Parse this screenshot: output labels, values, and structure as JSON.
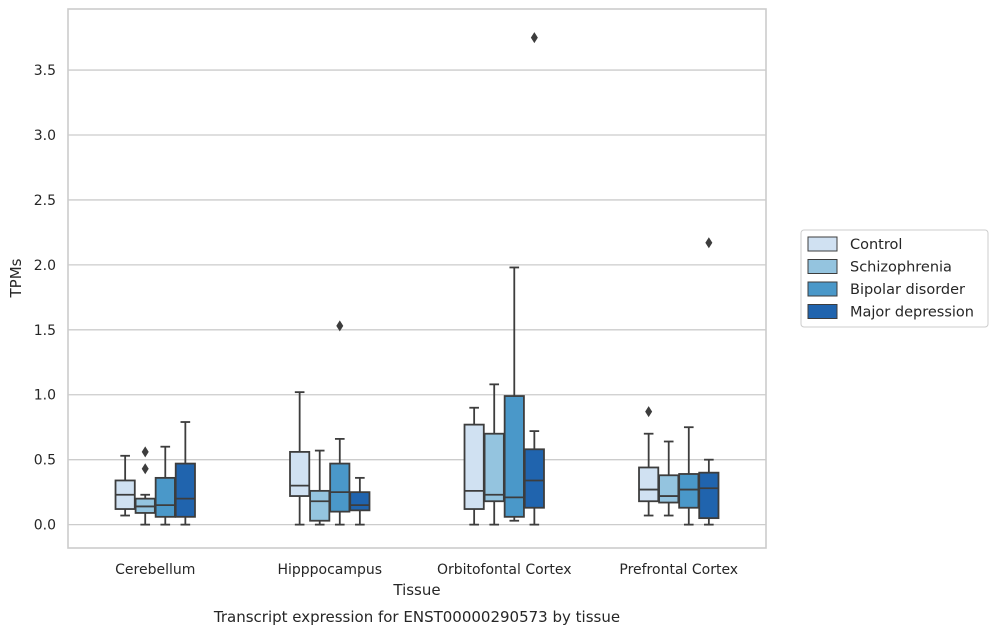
{
  "chart_data": {
    "type": "boxplot",
    "caption": "Transcript expression for ENST00000290573 by tissue",
    "xlabel": "Tissue",
    "ylabel": "TPMs",
    "ylim": [
      -0.18,
      3.97
    ],
    "yticks": [
      "0.0",
      "0.5",
      "1.0",
      "1.5",
      "2.0",
      "2.5",
      "3.0",
      "3.5"
    ],
    "grid": "horizontal",
    "legend_position": "right",
    "categories": [
      "Cerebellum",
      "Hipppocampus",
      "Orbitofontal Cortex",
      "Prefrontal Cortex"
    ],
    "series": [
      {
        "name": "Control",
        "color": "#d0e1f2",
        "boxes": [
          {
            "whislo": 0.07,
            "q1": 0.12,
            "med": 0.23,
            "q3": 0.34,
            "whishi": 0.53,
            "fliers": []
          },
          {
            "whislo": 0.0,
            "q1": 0.22,
            "med": 0.3,
            "q3": 0.56,
            "whishi": 1.02,
            "fliers": []
          },
          {
            "whislo": 0.0,
            "q1": 0.12,
            "med": 0.26,
            "q3": 0.77,
            "whishi": 0.9,
            "fliers": []
          },
          {
            "whislo": 0.07,
            "q1": 0.18,
            "med": 0.27,
            "q3": 0.44,
            "whishi": 0.7,
            "fliers": [
              0.87
            ]
          }
        ]
      },
      {
        "name": "Schizophrenia",
        "color": "#94c4df",
        "boxes": [
          {
            "whislo": 0.0,
            "q1": 0.09,
            "med": 0.14,
            "q3": 0.2,
            "whishi": 0.23,
            "fliers": [
              0.43,
              0.56
            ]
          },
          {
            "whislo": 0.0,
            "q1": 0.03,
            "med": 0.18,
            "q3": 0.26,
            "whishi": 0.57,
            "fliers": []
          },
          {
            "whislo": 0.0,
            "q1": 0.18,
            "med": 0.23,
            "q3": 0.7,
            "whishi": 1.08,
            "fliers": []
          },
          {
            "whislo": 0.07,
            "q1": 0.17,
            "med": 0.22,
            "q3": 0.38,
            "whishi": 0.64,
            "fliers": []
          }
        ]
      },
      {
        "name": "Bipolar disorder",
        "color": "#4a98c9",
        "boxes": [
          {
            "whislo": 0.0,
            "q1": 0.06,
            "med": 0.15,
            "q3": 0.36,
            "whishi": 0.6,
            "fliers": []
          },
          {
            "whislo": 0.0,
            "q1": 0.1,
            "med": 0.25,
            "q3": 0.47,
            "whishi": 0.66,
            "fliers": [
              1.53
            ]
          },
          {
            "whislo": 0.03,
            "q1": 0.06,
            "med": 0.21,
            "q3": 0.99,
            "whishi": 1.98,
            "fliers": []
          },
          {
            "whislo": 0.0,
            "q1": 0.13,
            "med": 0.27,
            "q3": 0.39,
            "whishi": 0.75,
            "fliers": []
          }
        ]
      },
      {
        "name": "Major depression",
        "color": "#2064ae",
        "boxes": [
          {
            "whislo": 0.0,
            "q1": 0.06,
            "med": 0.2,
            "q3": 0.47,
            "whishi": 0.79,
            "fliers": []
          },
          {
            "whislo": 0.0,
            "q1": 0.11,
            "med": 0.15,
            "q3": 0.25,
            "whishi": 0.36,
            "fliers": []
          },
          {
            "whislo": 0.0,
            "q1": 0.13,
            "med": 0.34,
            "q3": 0.58,
            "whishi": 0.72,
            "fliers": [
              3.75
            ]
          },
          {
            "whislo": 0.0,
            "q1": 0.05,
            "med": 0.28,
            "q3": 0.4,
            "whishi": 0.5,
            "fliers": [
              2.17
            ]
          }
        ]
      }
    ]
  }
}
